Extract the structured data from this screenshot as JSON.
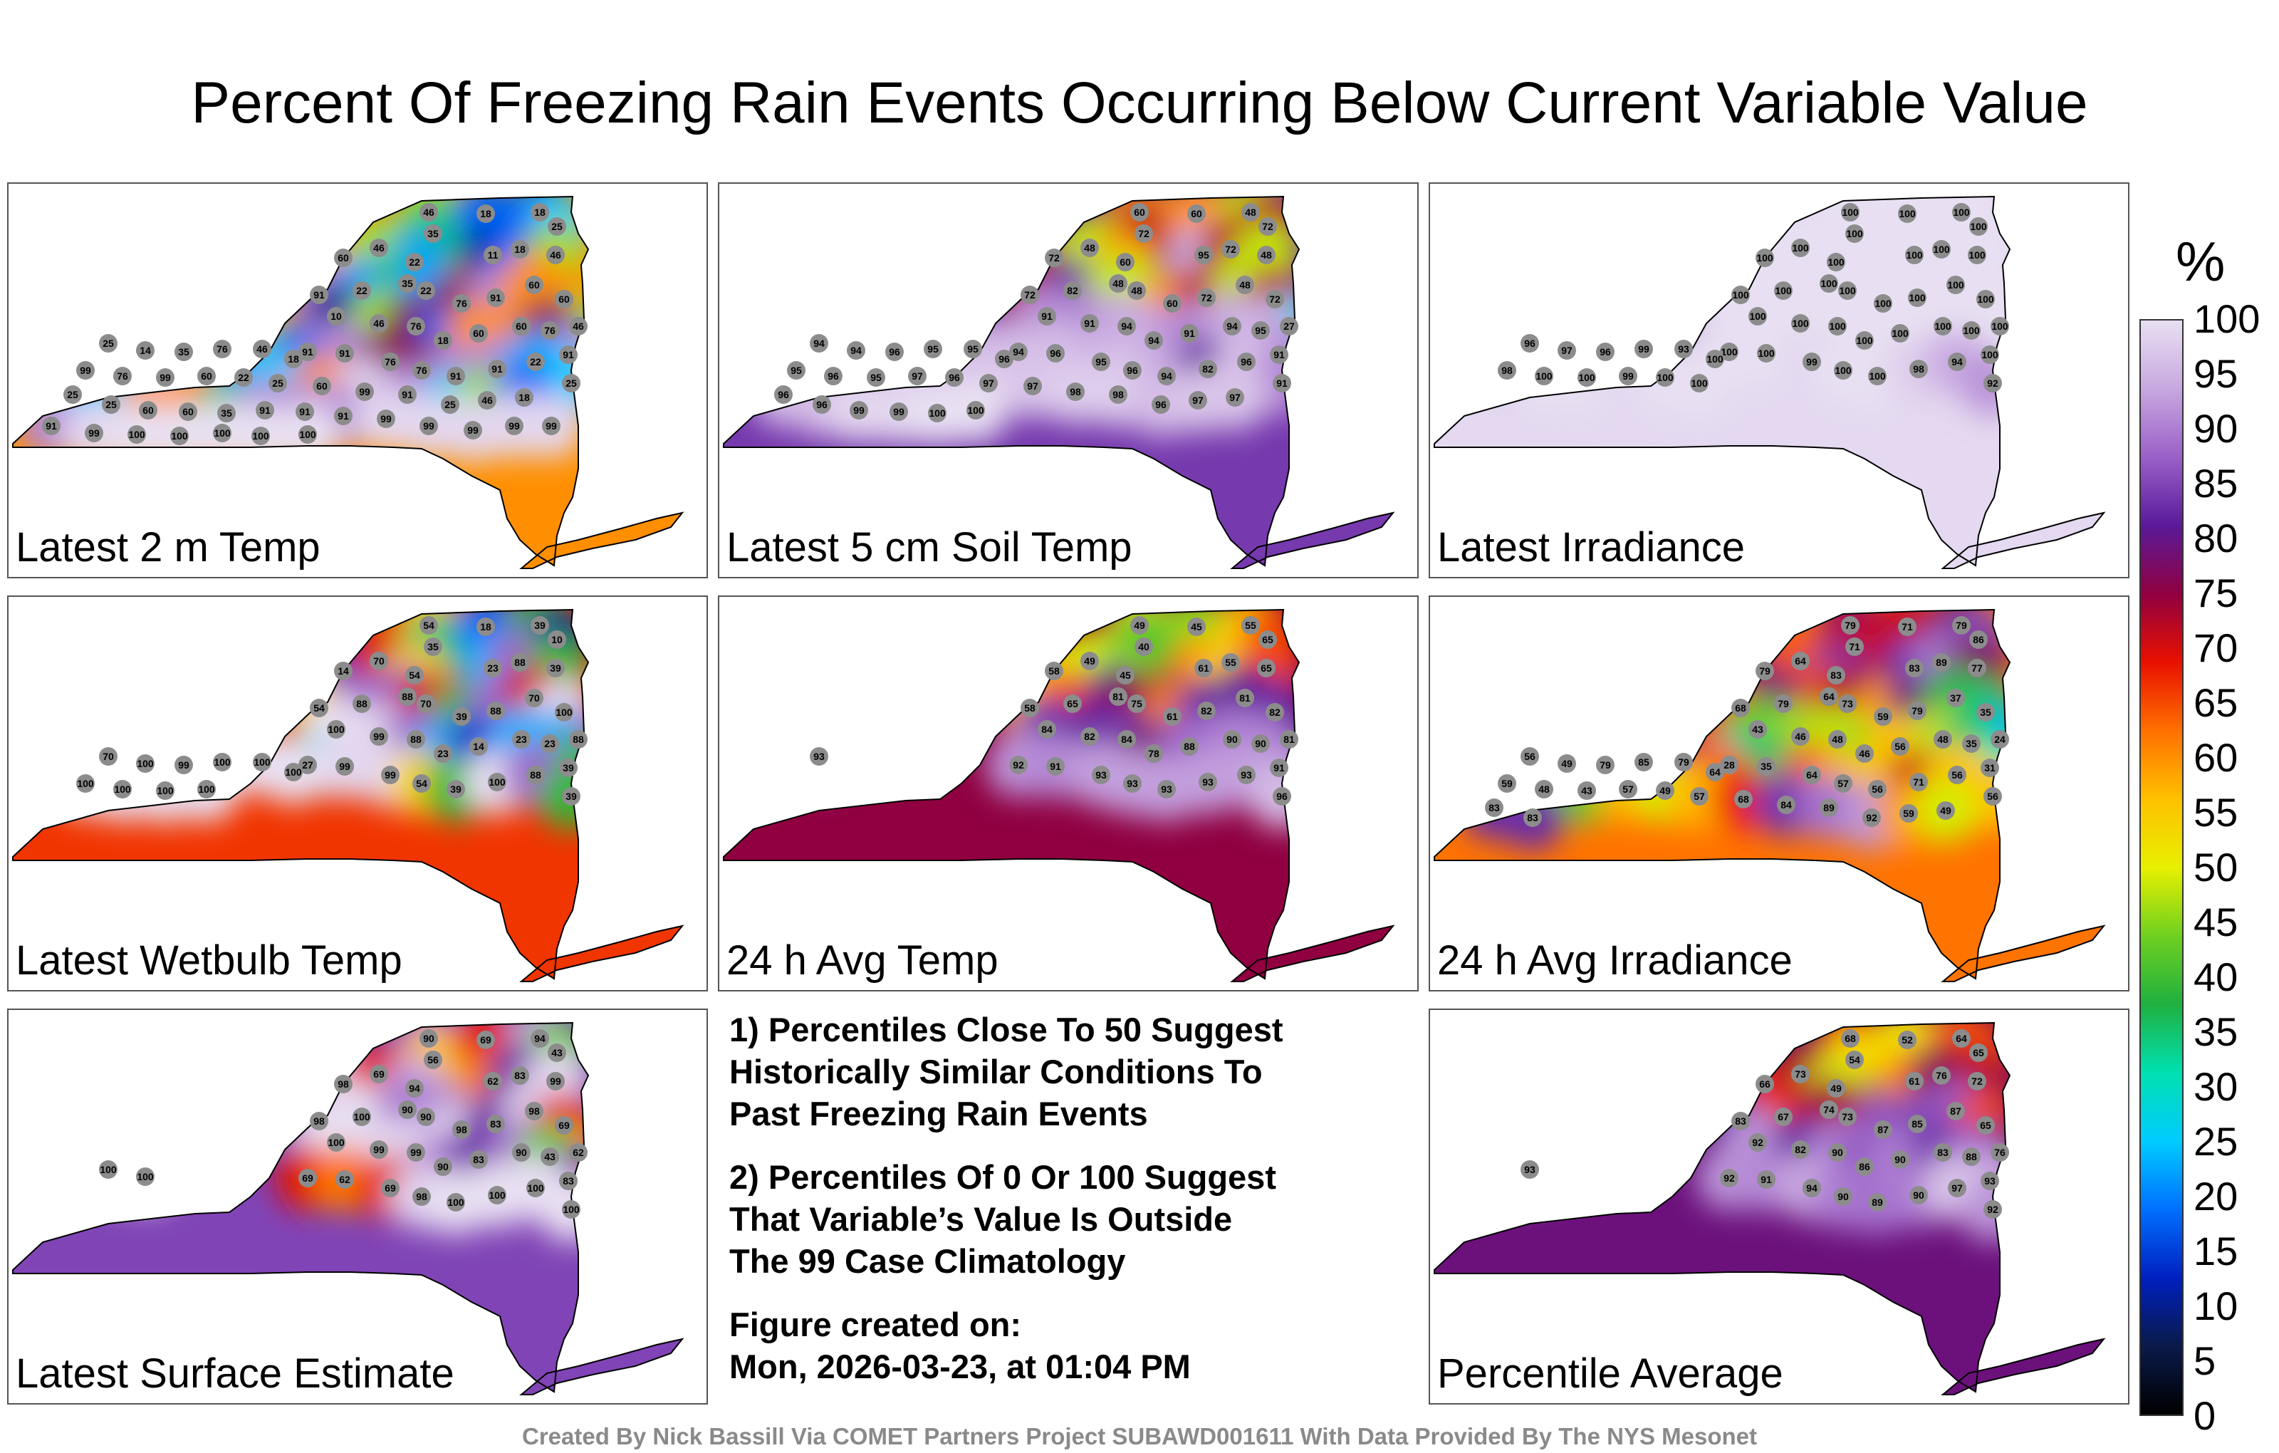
{
  "title": "Percent Of Freezing Rain Events Occurring Below Current Variable Value",
  "panels": [
    {
      "label": "Latest 2 m Temp",
      "stations": [
        46,
        35,
        18,
        18,
        25,
        60,
        46,
        22,
        11,
        18,
        46,
        91,
        22,
        35,
        22,
        76,
        91,
        60,
        60,
        46,
        10,
        46,
        76,
        18,
        60,
        60,
        76,
        91,
        91,
        91,
        76,
        76,
        91,
        91,
        22,
        25,
        25,
        14,
        35,
        76,
        46,
        18,
        99,
        76,
        99,
        60,
        22,
        25,
        60,
        99,
        91,
        25,
        46,
        18,
        25,
        25,
        60,
        60,
        35,
        91,
        91,
        91,
        99,
        99,
        99,
        99,
        99,
        91,
        99,
        100,
        100,
        100,
        100,
        100
      ]
    },
    {
      "label": "Latest 5 cm Soil Temp",
      "stations": [
        60,
        72,
        60,
        48,
        72,
        72,
        48,
        60,
        95,
        72,
        48,
        72,
        82,
        48,
        48,
        60,
        72,
        48,
        72,
        27,
        91,
        91,
        94,
        94,
        91,
        94,
        95,
        91,
        94,
        96,
        95,
        96,
        94,
        82,
        96,
        91,
        94,
        94,
        96,
        95,
        95,
        96,
        95,
        96,
        95,
        97,
        96,
        97,
        97,
        98,
        98,
        96,
        97,
        97,
        96,
        96,
        99,
        99,
        100,
        100
      ]
    },
    {
      "label": "Latest Irradiance",
      "stations": [
        100,
        100,
        100,
        100,
        100,
        100,
        100,
        100,
        100,
        100,
        100,
        100,
        100,
        100,
        100,
        100,
        100,
        100,
        100,
        100,
        100,
        100,
        100,
        100,
        100,
        100,
        100,
        100,
        100,
        100,
        99,
        100,
        100,
        98,
        94,
        92,
        96,
        97,
        96,
        99,
        93,
        100,
        98,
        100,
        100,
        99,
        100,
        100
      ]
    },
    {
      "label": "Latest Wetbulb Temp",
      "stations": [
        54,
        35,
        18,
        39,
        10,
        14,
        70,
        54,
        23,
        88,
        39,
        54,
        88,
        88,
        70,
        39,
        88,
        70,
        100,
        88,
        100,
        99,
        88,
        23,
        14,
        23,
        23,
        39,
        27,
        99,
        99,
        54,
        39,
        100,
        88,
        39,
        70,
        100,
        99,
        100,
        100,
        100,
        100,
        100,
        100,
        100
      ]
    },
    {
      "label": "24 h Avg Temp",
      "stations": [
        49,
        40,
        45,
        55,
        65,
        58,
        49,
        45,
        61,
        55,
        65,
        58,
        65,
        81,
        75,
        61,
        82,
        81,
        82,
        81,
        84,
        82,
        84,
        78,
        88,
        90,
        90,
        91,
        92,
        91,
        93,
        93,
        93,
        93,
        93,
        96,
        93
      ]
    },
    {
      "label": "24 h Avg Irradiance",
      "stations": [
        79,
        71,
        71,
        79,
        86,
        79,
        64,
        83,
        83,
        89,
        77,
        68,
        79,
        64,
        73,
        59,
        79,
        37,
        35,
        24,
        43,
        46,
        48,
        46,
        56,
        48,
        35,
        31,
        28,
        35,
        64,
        57,
        56,
        71,
        56,
        56,
        56,
        49,
        79,
        85,
        79,
        64,
        59,
        48,
        43,
        57,
        49,
        57,
        68,
        84,
        89,
        92,
        59,
        49,
        83,
        83
      ]
    },
    {
      "label": "Latest Surface Estimate",
      "stations": [
        90,
        56,
        69,
        94,
        43,
        98,
        69,
        94,
        62,
        83,
        99,
        98,
        100,
        90,
        90,
        98,
        83,
        98,
        69,
        62,
        100,
        99,
        99,
        90,
        83,
        90,
        43,
        83,
        69,
        62,
        69,
        98,
        100,
        100,
        100,
        100,
        100,
        100
      ]
    },
    {
      "label": "Percentile Average",
      "stations": [
        68,
        54,
        52,
        64,
        65,
        66,
        73,
        49,
        61,
        76,
        72,
        83,
        67,
        74,
        73,
        87,
        85,
        87,
        65,
        76,
        92,
        82,
        90,
        86,
        90,
        83,
        88,
        93,
        92,
        91,
        94,
        90,
        89,
        90,
        97,
        92,
        93
      ]
    }
  ],
  "notes": {
    "line1a": "1) Percentiles Close To 50 Suggest",
    "line1b": "Historically Similar Conditions To",
    "line1c": "Past Freezing Rain Events",
    "line2a": "2) Percentiles Of 0 Or 100 Suggest",
    "line2b": "That Variable’s Value Is Outside",
    "line2c": "The 99 Case Climatology",
    "created_label": "Figure created on:",
    "created_value": "Mon, 2026-03-23, at 01:04 PM"
  },
  "credit": "Created By Nick Bassill Via COMET Partners Project SUBAWD001611 With Data Provided By The NYS Mesonet",
  "chart_data": {
    "type": "heatmap",
    "title": "Percent Of Freezing Rain Events Occurring Below Current Variable Value",
    "colorbar": {
      "unit": "%",
      "range": [
        0,
        100
      ],
      "ticks": [
        "0",
        "5",
        "10",
        "15",
        "20",
        "25",
        "30",
        "35",
        "40",
        "45",
        "50",
        "55",
        "60",
        "65",
        "70",
        "75",
        "80",
        "85",
        "90",
        "95",
        "100"
      ],
      "colors": [
        "#000000",
        "#0a1a4a",
        "#0020c0",
        "#0070ff",
        "#00ccff",
        "#00e0b0",
        "#20b040",
        "#70d020",
        "#e8f000",
        "#ffc000",
        "#ff7000",
        "#e81000",
        "#900040",
        "#5a1a9a",
        "#9a60c8",
        "#c8a8e0",
        "#e8e0f2"
      ]
    }
  }
}
